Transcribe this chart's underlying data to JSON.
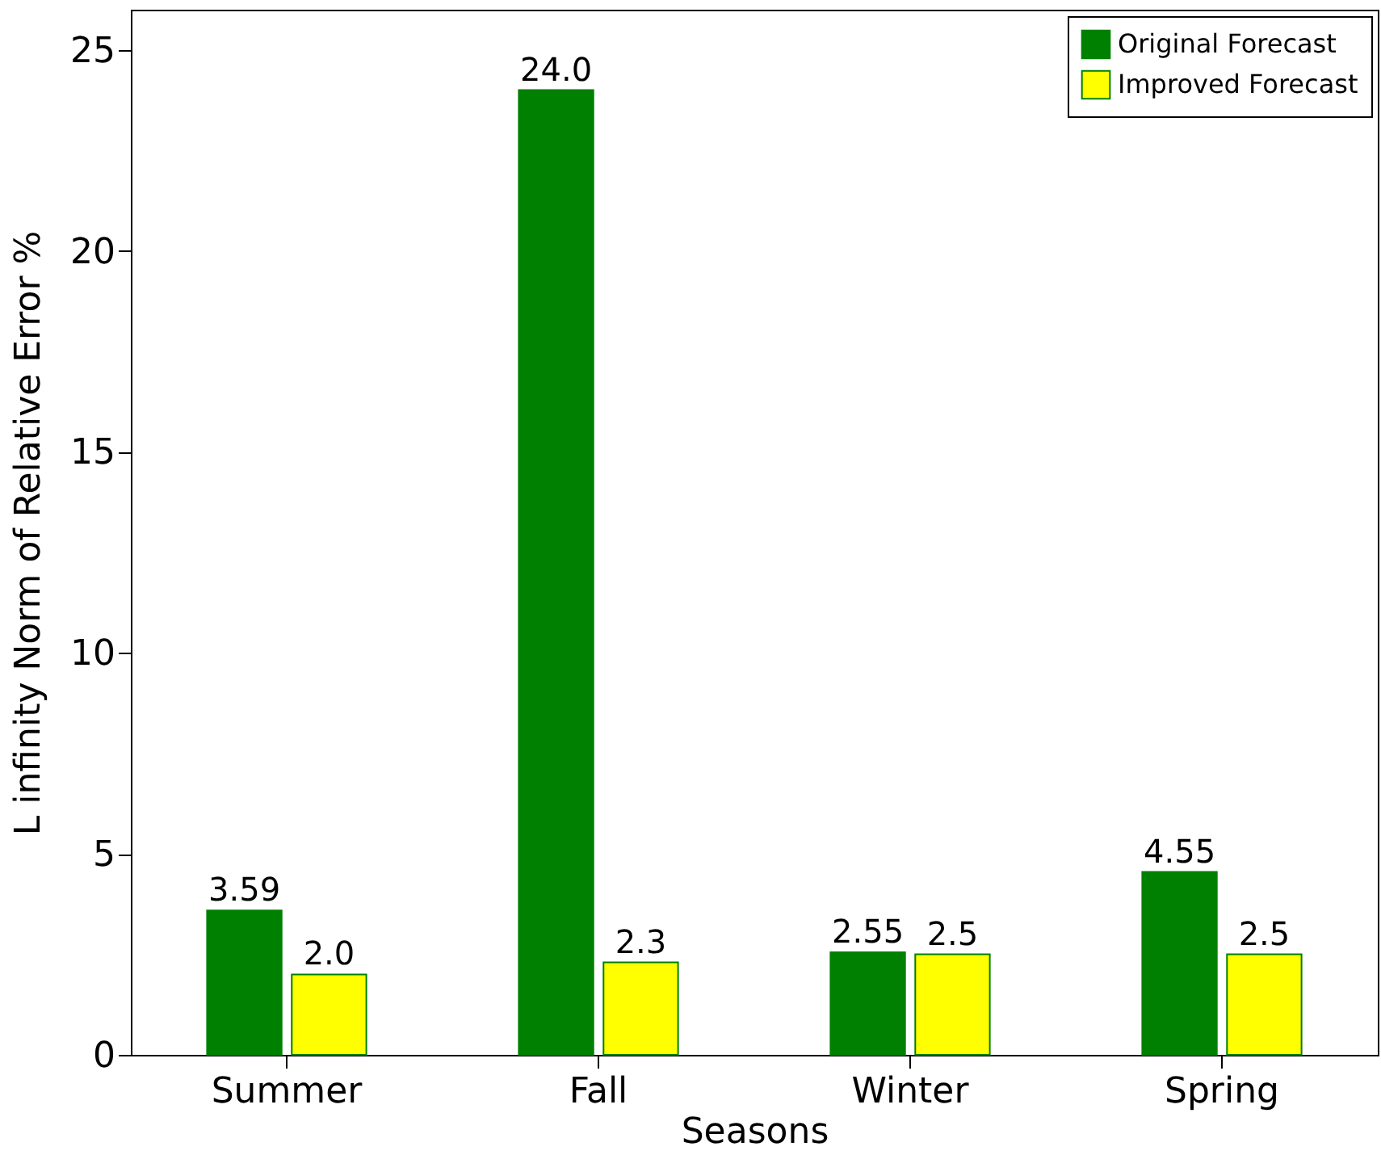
{
  "chart_data": {
    "type": "bar",
    "xlabel": "Seasons",
    "ylabel": "L infinity Norm of Relative Error %",
    "categories": [
      "Summer",
      "Fall",
      "Winter",
      "Spring"
    ],
    "series": [
      {
        "name": "Original Forecast",
        "color": "#008000",
        "values": [
          3.59,
          24.0,
          2.55,
          4.55
        ],
        "value_labels": [
          "3.59",
          "24.0",
          "2.55",
          "4.55"
        ]
      },
      {
        "name": "Improved Forecast",
        "color": "#ffff00",
        "values": [
          2.0,
          2.3,
          2.5,
          2.5
        ],
        "value_labels": [
          "2.0",
          "2.3",
          "2.5",
          "2.5"
        ]
      }
    ],
    "ylim": [
      0,
      26
    ],
    "yticks": [
      0,
      5,
      10,
      15,
      20,
      25
    ],
    "grid": false,
    "legend": "top right"
  }
}
